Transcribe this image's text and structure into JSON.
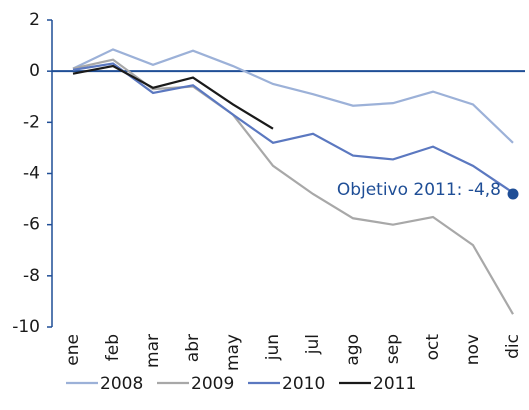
{
  "chart_data": {
    "type": "line",
    "categories": [
      "ene",
      "feb",
      "mar",
      "abr",
      "may",
      "jun",
      "jul",
      "ago",
      "sep",
      "oct",
      "nov",
      "dic"
    ],
    "series": [
      {
        "name": "2008",
        "color": "#9cb1d8",
        "values": [
          0.1,
          0.85,
          0.25,
          0.8,
          0.2,
          -0.5,
          -0.9,
          -1.35,
          -1.25,
          -0.8,
          -1.3,
          -2.8
        ]
      },
      {
        "name": "2009",
        "color": "#a8a8a8",
        "values": [
          0.1,
          0.45,
          -0.7,
          -0.6,
          -1.7,
          -3.7,
          -4.8,
          -5.75,
          -6.0,
          -5.7,
          -6.8,
          -9.5
        ]
      },
      {
        "name": "2010",
        "color": "#5b78c0",
        "values": [
          0.05,
          0.3,
          -0.85,
          -0.55,
          -1.7,
          -2.8,
          -2.45,
          -3.3,
          -3.45,
          -2.95,
          -3.7,
          -4.75
        ]
      },
      {
        "name": "2011",
        "color": "#1a1a1a",
        "values": [
          -0.1,
          0.2,
          -0.65,
          -0.25,
          -1.3,
          -2.25,
          null,
          null,
          null,
          null,
          null,
          null
        ]
      }
    ],
    "ylim": [
      -10,
      2
    ],
    "yticks": [
      -10,
      -8,
      -6,
      -4,
      -2,
      0,
      2
    ],
    "zero_line_color": "#1f4e96",
    "annotation": {
      "label": "Objetivo 2011: -4,8",
      "category": "dic",
      "value": -4.8,
      "color": "#1f4e96"
    }
  }
}
